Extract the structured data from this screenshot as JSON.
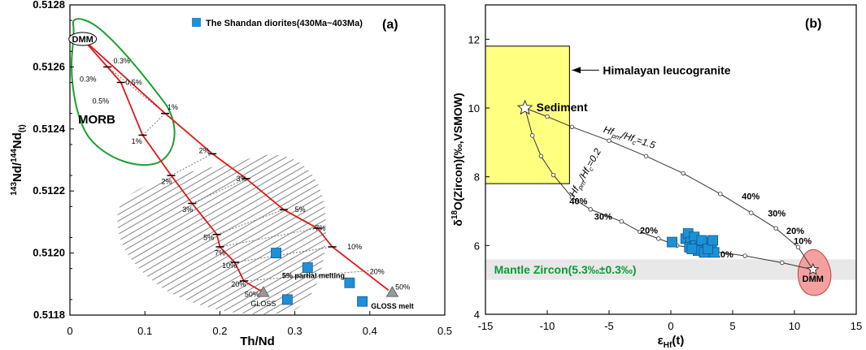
{
  "chart_data": [
    {
      "type": "scatter",
      "panel_label": "(a)",
      "xlabel": "Th/Nd",
      "ylabel": "143Nd/144Nd(t)",
      "ylabel_parts": {
        "sup1": "143",
        "main1": "Nd/",
        "sup2": "144",
        "main2": "Nd",
        "sub": "(t)"
      },
      "xlim": [
        0,
        0.5
      ],
      "ylim": [
        0.5118,
        0.5128
      ],
      "x_ticks": [
        "0",
        "0.1",
        "0.2",
        "0.3",
        "0.4",
        "0.5"
      ],
      "y_ticks": [
        "0.5118",
        "0.5120",
        "0.5122",
        "0.5124",
        "0.5126",
        "0.5128"
      ],
      "legend": {
        "label": "The Shandan diorites(430Ma~403Ma)",
        "color": "#1e90d6"
      },
      "series": [
        {
          "name": "The Shandan diorites(430Ma~403Ma)",
          "color": "#1e90d6",
          "points": [
            [
              0.275,
              0.512
            ],
            [
              0.317,
              0.511953
            ],
            [
              0.373,
              0.511904
            ],
            [
              0.29,
              0.51185
            ],
            [
              0.39,
              0.511844
            ]
          ]
        }
      ],
      "end_members": [
        {
          "label": "DMM",
          "x": 0.017,
          "y": 0.51269
        },
        {
          "label": "GLOSS",
          "x": 0.258,
          "y": 0.511873
        },
        {
          "label": "GLOSS melt",
          "x": 0.43,
          "y": 0.511873
        }
      ],
      "mixing_curves": [
        {
          "name": "DMM-GLOSS melt upper",
          "points": [
            [
              0.017,
              0.51269
            ],
            [
              0.127,
              0.51245
            ],
            [
              0.19,
              0.51232
            ],
            [
              0.235,
              0.51224
            ],
            [
              0.285,
              0.51214
            ],
            [
              0.33,
              0.51208
            ],
            [
              0.35,
              0.51202
            ],
            [
              0.425,
              0.51188
            ]
          ],
          "tick_labels": [
            "1%",
            "2%",
            "3%",
            "5%",
            "7%",
            "10%",
            "50%"
          ]
        },
        {
          "name": "DMM-GLOSS lower",
          "points": [
            [
              0.017,
              0.51269
            ],
            [
              0.05,
              0.5126
            ],
            [
              0.068,
              0.51255
            ],
            [
              0.097,
              0.51238
            ],
            [
              0.135,
              0.51225
            ],
            [
              0.163,
              0.51216
            ],
            [
              0.196,
              0.51206
            ],
            [
              0.2,
              0.51202
            ],
            [
              0.22,
              0.51197
            ],
            [
              0.232,
              0.51191
            ],
            [
              0.258,
              0.511873
            ]
          ],
          "tick_labels": [
            "0.3%",
            "0.5%",
            "1%",
            "2%",
            "3%",
            "5%",
            "7%",
            "10%",
            "20%",
            "50%"
          ]
        }
      ],
      "annotations": [
        "MORB",
        "5% partial melting",
        "20%",
        "0.3%",
        "0.5%",
        "1%",
        "2%",
        "3%",
        "5%",
        "7%",
        "10%",
        "50%"
      ]
    },
    {
      "type": "scatter",
      "panel_label": "(b)",
      "xlabel": "εHf(t)",
      "ylabel": "δ18O(Zircon)(‰,VSMOW)",
      "xlabel_parts": {
        "main": "ε",
        "sub": "Hf",
        "tail": "(t)"
      },
      "ylabel_parts": {
        "main1": "δ",
        "sup": "18",
        "main2": "O(Zircon)(‰,VSMOW)"
      },
      "xlim": [
        -15,
        15
      ],
      "ylim": [
        4,
        13
      ],
      "x_ticks": [
        "-15",
        "-10",
        "-5",
        "0",
        "5",
        "10",
        "15"
      ],
      "y_ticks": [
        "4",
        "6",
        "8",
        "10",
        "12"
      ],
      "series": [
        {
          "name": "The Shandan diorites",
          "color": "#1e90d6",
          "points": [
            [
              0.1,
              6.1
            ],
            [
              1.2,
              6.2
            ],
            [
              1.4,
              6.35
            ],
            [
              1.6,
              6.1
            ],
            [
              1.9,
              6.25
            ],
            [
              1.5,
              5.95
            ],
            [
              2.0,
              6.0
            ],
            [
              2.4,
              5.95
            ],
            [
              2.8,
              6.05
            ],
            [
              3.1,
              6.1
            ],
            [
              3.3,
              5.95
            ],
            [
              2.2,
              5.85
            ],
            [
              2.7,
              5.8
            ],
            [
              3.5,
              5.8
            ],
            [
              1.7,
              5.9
            ],
            [
              2.5,
              6.15
            ],
            [
              3.0,
              5.9
            ],
            [
              3.4,
              6.15
            ]
          ]
        }
      ],
      "end_members": [
        {
          "label": "Sediment",
          "x": -11.8,
          "y": 10.0
        },
        {
          "label": "DMM",
          "x": 11.5,
          "y": 5.3
        }
      ],
      "regions": [
        {
          "label": "Himalayan leucogranite",
          "x": [
            -15,
            -8.2
          ],
          "y": [
            7.8,
            11.8
          ],
          "color": "#ffff80"
        },
        {
          "label": "Mantle Zircon(5.3‰±0.3‰)",
          "y": [
            5.0,
            5.6
          ],
          "color": "#e8e8e8",
          "label_color": "#0a9a35"
        }
      ],
      "mixing_curves": [
        {
          "name": "Hfpm/Hfc=1.5",
          "label": "Hfpm/Hfc=1.5",
          "points": [
            [
              -11.8,
              10.0
            ],
            [
              -10,
              9.75
            ],
            [
              -8,
              9.45
            ],
            [
              -5,
              9.05
            ],
            [
              -2,
              8.6
            ],
            [
              1,
              8.1
            ],
            [
              4,
              7.5
            ],
            [
              6.5,
              6.95
            ],
            [
              8.5,
              6.5
            ],
            [
              10.3,
              5.95
            ],
            [
              11.5,
              5.3
            ]
          ],
          "tick_labels": [
            "40%",
            "30%",
            "20%",
            "10%"
          ]
        },
        {
          "name": "Hfpm/Hfc=0.2",
          "label": "Hfpm/Hfc=0.2",
          "points": [
            [
              -11.8,
              10.0
            ],
            [
              -11.2,
              9.2
            ],
            [
              -10.5,
              8.6
            ],
            [
              -9.5,
              8.05
            ],
            [
              -8.0,
              7.4
            ],
            [
              -6.5,
              7.05
            ],
            [
              -4,
              6.7
            ],
            [
              -2.5,
              6.4
            ],
            [
              -1,
              6.2
            ],
            [
              0.5,
              6.0
            ],
            [
              3,
              5.85
            ],
            [
              6,
              5.7
            ],
            [
              9,
              5.5
            ],
            [
              11.5,
              5.3
            ]
          ],
          "tick_labels": [
            "40%",
            "30%",
            "20%",
            "10%"
          ]
        }
      ]
    }
  ]
}
